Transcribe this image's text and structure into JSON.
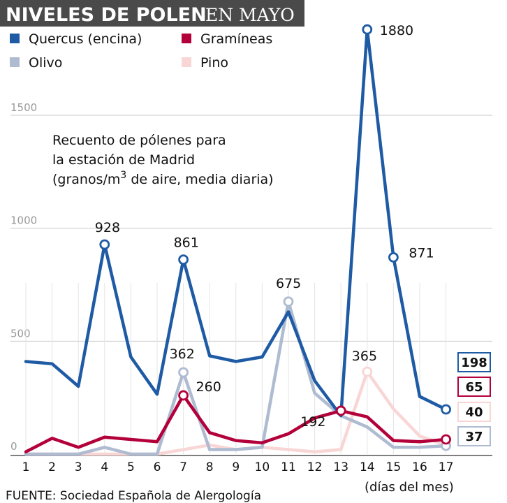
{
  "chart_data": {
    "type": "line",
    "title_bold": "NIVELES DE POLEN",
    "title_light": "EN MAYO",
    "subtitle": [
      "Recuento de pólenes para",
      "la estación de Madrid",
      "(granos/m",
      "3",
      " de aire, media diaria)"
    ],
    "x": [
      1,
      2,
      3,
      4,
      5,
      6,
      7,
      8,
      9,
      10,
      11,
      12,
      13,
      14,
      15,
      16,
      17
    ],
    "xlabel": "(días del mes)",
    "yticks": [
      0,
      500,
      1000,
      1500
    ],
    "ylim": [
      0,
      1880
    ],
    "source": "FUENTE: Sociedad Española de Alergología",
    "series": [
      {
        "name": "Pino",
        "color": "#f9d6d6",
        "values": [
          0,
          0,
          0,
          0,
          0,
          0,
          20,
          40,
          20,
          30,
          20,
          10,
          20,
          365,
          200,
          80,
          40
        ],
        "labels": [
          {
            "i": 13,
            "text": "365"
          }
        ],
        "end_label": "40"
      },
      {
        "name": "Olivo",
        "color": "#aebbd1",
        "values": [
          0,
          0,
          0,
          30,
          0,
          0,
          362,
          20,
          20,
          30,
          675,
          270,
          170,
          120,
          30,
          30,
          37
        ],
        "labels": [
          {
            "i": 6,
            "text": "362"
          },
          {
            "i": 10,
            "text": "675"
          }
        ],
        "end_label": "37"
      },
      {
        "name": "Gramíneas",
        "color": "#b3003a",
        "values": [
          10,
          70,
          30,
          75,
          65,
          55,
          260,
          95,
          60,
          50,
          90,
          160,
          192,
          165,
          60,
          55,
          65
        ],
        "labels": [
          {
            "i": 6,
            "text": "260"
          },
          {
            "i": 12,
            "text": "192"
          }
        ],
        "end_label": "65"
      },
      {
        "name": "Quercus (encina)",
        "color": "#1f5ba5",
        "values": [
          410,
          400,
          300,
          928,
          430,
          265,
          861,
          435,
          410,
          430,
          630,
          325,
          170,
          1880,
          871,
          255,
          198
        ],
        "labels": [
          {
            "i": 3,
            "text": "928"
          },
          {
            "i": 6,
            "text": "861"
          },
          {
            "i": 13,
            "text": "1880"
          },
          {
            "i": 14,
            "text": "871"
          }
        ],
        "end_label": "198"
      }
    ],
    "legend": [
      {
        "name": "Quercus (encina)",
        "color": "#1f5ba5"
      },
      {
        "name": "Gramíneas",
        "color": "#b3003a"
      },
      {
        "name": "Olivo",
        "color": "#aebbd1"
      },
      {
        "name": "Pino",
        "color": "#f9d6d6"
      }
    ]
  }
}
